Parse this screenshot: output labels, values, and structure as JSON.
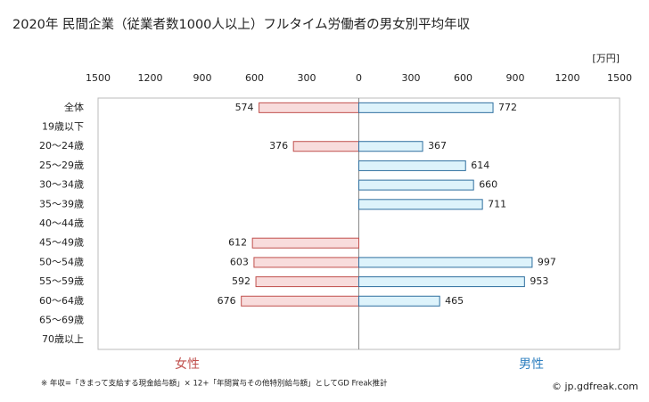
{
  "chart_data": {
    "type": "butterfly-bar",
    "title": "2020年 民間企業（従業者数1000人以上）フルタイム労働者の男女別平均年収",
    "unit": "[万円]",
    "categories": [
      "全体",
      "19歳以下",
      "20～24歳",
      "25～29歳",
      "30～34歳",
      "35～39歳",
      "40～44歳",
      "45～49歳",
      "50～54歳",
      "55～59歳",
      "60～64歳",
      "65～69歳",
      "70歳以上"
    ],
    "series": [
      {
        "name": "女性",
        "side": "left",
        "color": "#c0504d",
        "fill": "#f8dcdc",
        "label_color": "#c0504d",
        "values": [
          574,
          null,
          376,
          null,
          null,
          null,
          null,
          612,
          603,
          592,
          676,
          null,
          null
        ]
      },
      {
        "name": "男性",
        "side": "right",
        "color": "#2f6f9f",
        "fill": "#ddf3fb",
        "label_color": "#2f80c0",
        "values": [
          772,
          null,
          367,
          614,
          660,
          711,
          null,
          null,
          997,
          953,
          465,
          null,
          null
        ]
      }
    ],
    "xlim": [
      -1500,
      1500
    ],
    "xticks": [
      {
        "value": -1500,
        "label": "1500"
      },
      {
        "value": -1200,
        "label": "1200"
      },
      {
        "value": -900,
        "label": "900"
      },
      {
        "value": -600,
        "label": "600"
      },
      {
        "value": -300,
        "label": "300"
      },
      0,
      300,
      600,
      900,
      1200,
      1500
    ],
    "footnote": "※ 年収=「きまって支給する現金給与額」× 12+「年間賞与その他特別給与額」としてGD Freak推計",
    "source": "© jp.gdfreak.com"
  }
}
